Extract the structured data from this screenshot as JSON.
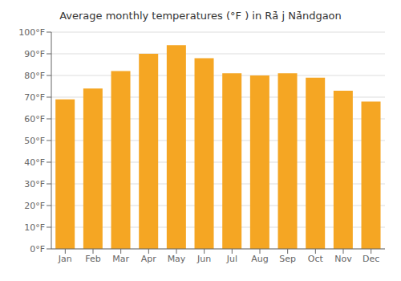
{
  "chart_data": {
    "type": "bar",
    "title": "Average monthly temperatures (°F ) in Rā̇ j Nā̇ndgaon",
    "categories": [
      "Jan",
      "Feb",
      "Mar",
      "Apr",
      "May",
      "Jun",
      "Jul",
      "Aug",
      "Sep",
      "Oct",
      "Nov",
      "Dec"
    ],
    "values": [
      69,
      74,
      82,
      90,
      94,
      88,
      81,
      80,
      81,
      79,
      73,
      68
    ],
    "color": "#F5A623",
    "ylim": [
      0,
      100
    ],
    "yticks": [
      {
        "value": 0,
        "label": "0°F"
      },
      {
        "value": 10,
        "label": "10°F"
      },
      {
        "value": 20,
        "label": "20°F"
      },
      {
        "value": 30,
        "label": "30°F"
      },
      {
        "value": 40,
        "label": "40°F"
      },
      {
        "value": 50,
        "label": "50°F"
      },
      {
        "value": 60,
        "label": "60°F"
      },
      {
        "value": 70,
        "label": "70°F"
      },
      {
        "value": 80,
        "label": "80°F"
      },
      {
        "value": 90,
        "label": "90°F"
      },
      {
        "value": 100,
        "label": "100°F"
      }
    ],
    "grid": true
  }
}
